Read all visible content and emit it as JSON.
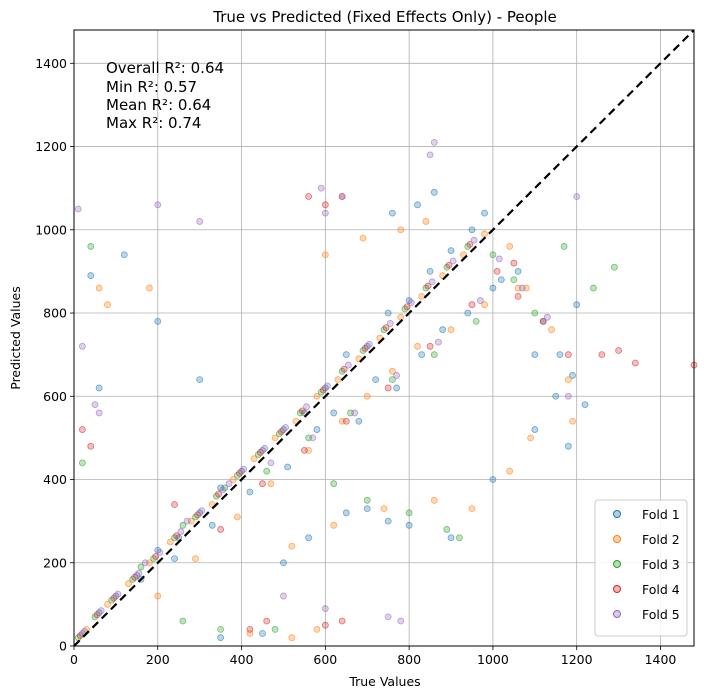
{
  "chart_data": {
    "type": "scatter",
    "title": "True vs Predicted (Fixed Effects Only) - People",
    "xlabel": "True Values",
    "ylabel": "Predicted Values",
    "xlim": [
      0,
      1480
    ],
    "ylim": [
      0,
      1480
    ],
    "xticks": [
      0,
      200,
      400,
      600,
      800,
      1000,
      1200,
      1400
    ],
    "yticks": [
      0,
      200,
      400,
      600,
      800,
      1000,
      1200,
      1400
    ],
    "grid": true,
    "legend_position": "bottom-right",
    "reference_line": {
      "style": "dashed",
      "color": "#000000",
      "from": [
        0,
        0
      ],
      "to": [
        1480,
        1480
      ]
    },
    "annotations": [
      {
        "text": "Overall R²: 0.64"
      },
      {
        "text": "Min R²: 0.57"
      },
      {
        "text": "Mean R²: 0.64"
      },
      {
        "text": "Max R²: 0.74"
      }
    ],
    "series": [
      {
        "name": "Fold 1",
        "color": "#1f77b4",
        "points": [
          [
            20,
            30
          ],
          [
            60,
            80
          ],
          [
            100,
            120
          ],
          [
            150,
            170
          ],
          [
            200,
            230
          ],
          [
            250,
            260
          ],
          [
            300,
            320
          ],
          [
            350,
            380
          ],
          [
            400,
            420
          ],
          [
            450,
            470
          ],
          [
            500,
            520
          ],
          [
            550,
            560
          ],
          [
            600,
            620
          ],
          [
            650,
            700
          ],
          [
            700,
            720
          ],
          [
            750,
            800
          ],
          [
            800,
            830
          ],
          [
            850,
            900
          ],
          [
            900,
            950
          ],
          [
            950,
            1000
          ],
          [
            980,
            1040
          ],
          [
            1020,
            880
          ],
          [
            1100,
            700
          ],
          [
            1150,
            600
          ],
          [
            1200,
            820
          ],
          [
            1220,
            580
          ],
          [
            860,
            1090
          ],
          [
            820,
            1060
          ],
          [
            760,
            1040
          ],
          [
            300,
            640
          ],
          [
            200,
            780
          ],
          [
            120,
            940
          ],
          [
            60,
            620
          ],
          [
            40,
            890
          ],
          [
            500,
            200
          ],
          [
            560,
            260
          ],
          [
            650,
            320
          ],
          [
            700,
            330
          ],
          [
            750,
            300
          ],
          [
            800,
            290
          ],
          [
            900,
            260
          ],
          [
            1000,
            400
          ],
          [
            1100,
            520
          ],
          [
            1180,
            480
          ],
          [
            450,
            30
          ],
          [
            350,
            20
          ],
          [
            160,
            160
          ],
          [
            240,
            210
          ],
          [
            330,
            290
          ],
          [
            420,
            370
          ],
          [
            510,
            430
          ],
          [
            580,
            520
          ],
          [
            620,
            560
          ],
          [
            680,
            540
          ],
          [
            720,
            640
          ],
          [
            770,
            620
          ],
          [
            830,
            700
          ],
          [
            880,
            760
          ],
          [
            940,
            800
          ],
          [
            1000,
            860
          ],
          [
            1060,
            900
          ],
          [
            1120,
            780
          ],
          [
            1160,
            700
          ],
          [
            1190,
            650
          ]
        ]
      },
      {
        "name": "Fold 2",
        "color": "#ff7f0e",
        "points": [
          [
            30,
            40
          ],
          [
            80,
            100
          ],
          [
            130,
            150
          ],
          [
            180,
            200
          ],
          [
            230,
            250
          ],
          [
            280,
            300
          ],
          [
            330,
            340
          ],
          [
            380,
            400
          ],
          [
            430,
            450
          ],
          [
            480,
            500
          ],
          [
            530,
            540
          ],
          [
            580,
            600
          ],
          [
            630,
            640
          ],
          [
            680,
            690
          ],
          [
            730,
            740
          ],
          [
            780,
            790
          ],
          [
            830,
            840
          ],
          [
            880,
            890
          ],
          [
            930,
            940
          ],
          [
            980,
            990
          ],
          [
            1040,
            960
          ],
          [
            1080,
            860
          ],
          [
            1140,
            760
          ],
          [
            1180,
            640
          ],
          [
            1190,
            540
          ],
          [
            840,
            1020
          ],
          [
            780,
            1000
          ],
          [
            690,
            980
          ],
          [
            600,
            940
          ],
          [
            180,
            860
          ],
          [
            80,
            820
          ],
          [
            60,
            860
          ],
          [
            520,
            240
          ],
          [
            620,
            290
          ],
          [
            740,
            330
          ],
          [
            860,
            350
          ],
          [
            950,
            330
          ],
          [
            1040,
            420
          ],
          [
            1090,
            500
          ],
          [
            580,
            40
          ],
          [
            520,
            20
          ],
          [
            420,
            30
          ],
          [
            200,
            120
          ],
          [
            290,
            210
          ],
          [
            390,
            310
          ],
          [
            470,
            390
          ],
          [
            560,
            470
          ],
          [
            640,
            540
          ],
          [
            700,
            600
          ],
          [
            760,
            660
          ],
          [
            820,
            720
          ],
          [
            900,
            760
          ],
          [
            980,
            820
          ],
          [
            1060,
            860
          ]
        ]
      },
      {
        "name": "Fold 3",
        "color": "#2ca02c",
        "points": [
          [
            10,
            20
          ],
          [
            50,
            70
          ],
          [
            90,
            110
          ],
          [
            140,
            160
          ],
          [
            190,
            210
          ],
          [
            240,
            260
          ],
          [
            290,
            310
          ],
          [
            340,
            360
          ],
          [
            390,
            410
          ],
          [
            440,
            460
          ],
          [
            490,
            510
          ],
          [
            540,
            560
          ],
          [
            590,
            610
          ],
          [
            640,
            660
          ],
          [
            690,
            710
          ],
          [
            740,
            760
          ],
          [
            790,
            810
          ],
          [
            840,
            860
          ],
          [
            890,
            910
          ],
          [
            940,
            960
          ],
          [
            1000,
            940
          ],
          [
            1050,
            880
          ],
          [
            1100,
            800
          ],
          [
            1170,
            960
          ],
          [
            1240,
            860
          ],
          [
            1290,
            910
          ],
          [
            920,
            260
          ],
          [
            890,
            280
          ],
          [
            800,
            320
          ],
          [
            700,
            350
          ],
          [
            620,
            390
          ],
          [
            40,
            960
          ],
          [
            20,
            440
          ],
          [
            260,
            60
          ],
          [
            350,
            40
          ],
          [
            480,
            40
          ],
          [
            160,
            190
          ],
          [
            260,
            290
          ],
          [
            360,
            380
          ],
          [
            460,
            420
          ],
          [
            560,
            500
          ],
          [
            660,
            560
          ],
          [
            760,
            640
          ],
          [
            860,
            700
          ],
          [
            960,
            780
          ]
        ]
      },
      {
        "name": "Fold 4",
        "color": "#d62728",
        "points": [
          [
            15,
            25
          ],
          [
            55,
            75
          ],
          [
            95,
            115
          ],
          [
            145,
            165
          ],
          [
            195,
            215
          ],
          [
            245,
            265
          ],
          [
            295,
            315
          ],
          [
            345,
            365
          ],
          [
            395,
            415
          ],
          [
            445,
            465
          ],
          [
            495,
            515
          ],
          [
            545,
            565
          ],
          [
            595,
            615
          ],
          [
            645,
            665
          ],
          [
            695,
            715
          ],
          [
            745,
            765
          ],
          [
            795,
            815
          ],
          [
            845,
            865
          ],
          [
            895,
            915
          ],
          [
            945,
            965
          ],
          [
            1010,
            900
          ],
          [
            1060,
            840
          ],
          [
            1120,
            780
          ],
          [
            1180,
            700
          ],
          [
            1260,
            700
          ],
          [
            1300,
            710
          ],
          [
            1340,
            680
          ],
          [
            1480,
            675
          ],
          [
            640,
            1080
          ],
          [
            560,
            1080
          ],
          [
            600,
            1060
          ],
          [
            20,
            520
          ],
          [
            40,
            480
          ],
          [
            240,
            340
          ],
          [
            420,
            40
          ],
          [
            460,
            60
          ],
          [
            640,
            60
          ],
          [
            600,
            50
          ],
          [
            350,
            280
          ],
          [
            450,
            390
          ],
          [
            550,
            470
          ],
          [
            650,
            540
          ],
          [
            750,
            620
          ],
          [
            850,
            720
          ],
          [
            950,
            820
          ],
          [
            1050,
            920
          ]
        ]
      },
      {
        "name": "Fold 5",
        "color": "#9467bd",
        "points": [
          [
            25,
            35
          ],
          [
            65,
            85
          ],
          [
            105,
            125
          ],
          [
            155,
            175
          ],
          [
            205,
            225
          ],
          [
            255,
            275
          ],
          [
            305,
            325
          ],
          [
            355,
            375
          ],
          [
            405,
            425
          ],
          [
            455,
            475
          ],
          [
            505,
            525
          ],
          [
            555,
            575
          ],
          [
            605,
            625
          ],
          [
            655,
            675
          ],
          [
            705,
            725
          ],
          [
            755,
            775
          ],
          [
            805,
            825
          ],
          [
            855,
            875
          ],
          [
            905,
            925
          ],
          [
            955,
            975
          ],
          [
            1015,
            930
          ],
          [
            1070,
            860
          ],
          [
            1130,
            790
          ],
          [
            1200,
            1080
          ],
          [
            1180,
            600
          ],
          [
            860,
            1210
          ],
          [
            850,
            1180
          ],
          [
            590,
            1100
          ],
          [
            640,
            1080
          ],
          [
            600,
            1040
          ],
          [
            10,
            1050
          ],
          [
            20,
            720
          ],
          [
            50,
            580
          ],
          [
            60,
            560
          ],
          [
            300,
            1020
          ],
          [
            200,
            1060
          ],
          [
            750,
            70
          ],
          [
            780,
            60
          ],
          [
            600,
            90
          ],
          [
            500,
            120
          ],
          [
            170,
            200
          ],
          [
            270,
            300
          ],
          [
            370,
            390
          ],
          [
            470,
            440
          ],
          [
            570,
            500
          ],
          [
            670,
            560
          ],
          [
            770,
            650
          ],
          [
            870,
            730
          ],
          [
            970,
            830
          ]
        ]
      }
    ]
  }
}
